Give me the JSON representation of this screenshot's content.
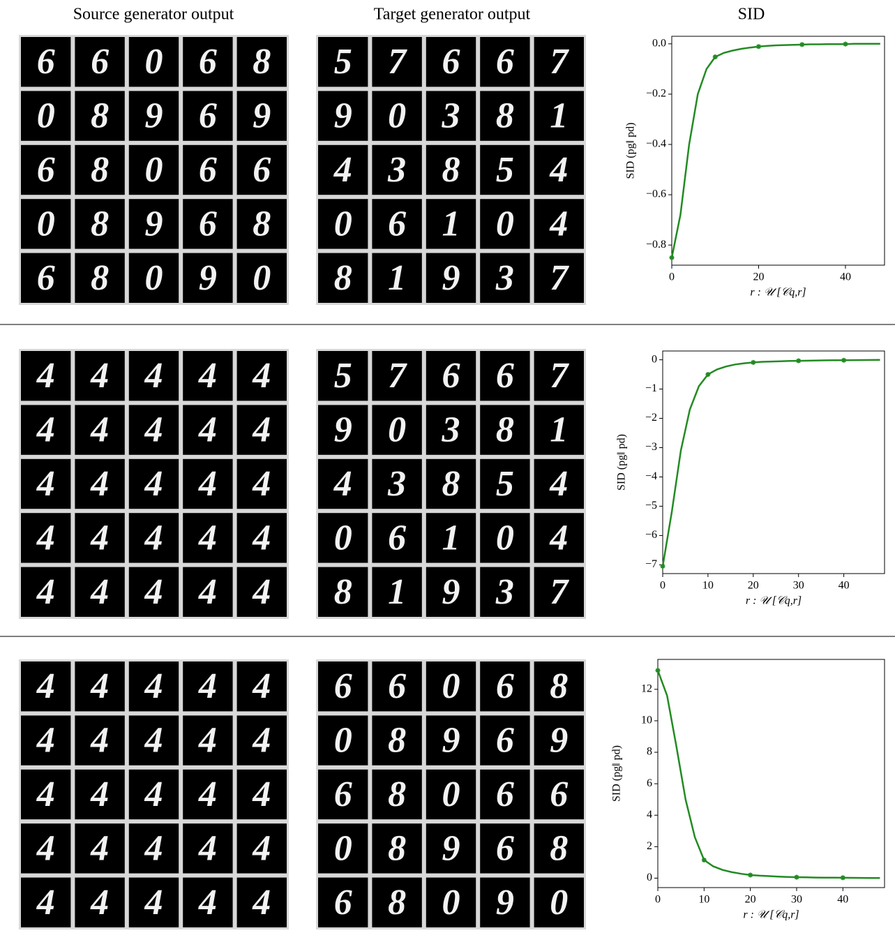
{
  "headers": [
    "Source generator output",
    "Target generator output",
    "SID"
  ],
  "panels": [
    {
      "source_grid": [
        [
          "6",
          "6",
          "0",
          "6",
          "8"
        ],
        [
          "0",
          "8",
          "9",
          "6",
          "9"
        ],
        [
          "6",
          "8",
          "0",
          "6",
          "6"
        ],
        [
          "0",
          "8",
          "9",
          "6",
          "8"
        ],
        [
          "6",
          "8",
          "0",
          "9",
          "0"
        ]
      ],
      "target_grid": [
        [
          "5",
          "7",
          "6",
          "6",
          "7"
        ],
        [
          "9",
          "0",
          "3",
          "8",
          "1"
        ],
        [
          "4",
          "3",
          "8",
          "5",
          "4"
        ],
        [
          "0",
          "6",
          "1",
          "0",
          "4"
        ],
        [
          "8",
          "1",
          "9",
          "3",
          "7"
        ]
      ]
    },
    {
      "source_grid": [
        [
          "4",
          "4",
          "4",
          "4",
          "4"
        ],
        [
          "4",
          "4",
          "4",
          "4",
          "4"
        ],
        [
          "4",
          "4",
          "4",
          "4",
          "4"
        ],
        [
          "4",
          "4",
          "4",
          "4",
          "4"
        ],
        [
          "4",
          "4",
          "4",
          "4",
          "4"
        ]
      ],
      "target_grid": [
        [
          "5",
          "7",
          "6",
          "6",
          "7"
        ],
        [
          "9",
          "0",
          "3",
          "8",
          "1"
        ],
        [
          "4",
          "3",
          "8",
          "5",
          "4"
        ],
        [
          "0",
          "6",
          "1",
          "0",
          "4"
        ],
        [
          "8",
          "1",
          "9",
          "3",
          "7"
        ]
      ]
    },
    {
      "source_grid": [
        [
          "4",
          "4",
          "4",
          "4",
          "4"
        ],
        [
          "4",
          "4",
          "4",
          "4",
          "4"
        ],
        [
          "4",
          "4",
          "4",
          "4",
          "4"
        ],
        [
          "4",
          "4",
          "4",
          "4",
          "4"
        ],
        [
          "4",
          "4",
          "4",
          "4",
          "4"
        ]
      ],
      "target_grid": [
        [
          "6",
          "6",
          "0",
          "6",
          "8"
        ],
        [
          "0",
          "8",
          "9",
          "6",
          "9"
        ],
        [
          "6",
          "8",
          "0",
          "6",
          "6"
        ],
        [
          "0",
          "8",
          "9",
          "6",
          "8"
        ],
        [
          "6",
          "8",
          "0",
          "9",
          "0"
        ]
      ]
    }
  ],
  "chart_data": [
    {
      "type": "line",
      "xlabel": "r : 𝒰 [𝒞q,r]",
      "ylabel": "SID (pg‖ pd)",
      "color": "#228b22",
      "markevery": 5,
      "x": [
        0,
        2,
        4,
        6,
        8,
        10,
        12,
        14,
        16,
        18,
        20,
        22,
        24,
        26,
        28,
        30,
        32,
        34,
        36,
        38,
        40,
        42,
        44,
        46,
        48
      ],
      "values": [
        -0.85,
        -0.68,
        -0.4,
        -0.2,
        -0.1,
        -0.052,
        -0.036,
        -0.027,
        -0.02,
        -0.015,
        -0.011,
        -0.008,
        -0.006,
        -0.005,
        -0.004,
        -0.003,
        -0.002,
        -0.002,
        -0.001,
        -0.001,
        -0.001,
        0,
        0,
        0,
        0
      ],
      "xlim": [
        0,
        49
      ],
      "xticks": [
        0,
        20,
        40
      ],
      "ylim": [
        -0.88,
        0.03
      ],
      "yticks": [
        {
          "value": -0.8,
          "label": "−0.8"
        },
        {
          "value": -0.6,
          "label": "−0.6"
        },
        {
          "value": -0.4,
          "label": "−0.4"
        },
        {
          "value": -0.2,
          "label": "−0.2"
        },
        {
          "value": 0,
          "label": "0.0"
        }
      ]
    },
    {
      "type": "line",
      "xlabel": "r : 𝒰 [𝒞q,r]",
      "ylabel": "SID (pg‖ pd)",
      "color": "#228b22",
      "markevery": 5,
      "x": [
        0,
        2,
        4,
        6,
        8,
        10,
        12,
        14,
        16,
        18,
        20,
        22,
        24,
        26,
        28,
        30,
        32,
        34,
        36,
        38,
        40,
        42,
        44,
        46,
        48
      ],
      "values": [
        -7.05,
        -5.2,
        -3.1,
        -1.7,
        -0.9,
        -0.5,
        -0.33,
        -0.23,
        -0.16,
        -0.12,
        -0.09,
        -0.07,
        -0.06,
        -0.05,
        -0.04,
        -0.035,
        -0.03,
        -0.025,
        -0.02,
        -0.018,
        -0.015,
        -0.012,
        -0.01,
        -0.008,
        -0.006
      ],
      "xlim": [
        0,
        49
      ],
      "xticks": [
        0,
        10,
        20,
        30,
        40
      ],
      "ylim": [
        -7.3,
        0.3
      ],
      "yticks": [
        {
          "value": -7,
          "label": "−7"
        },
        {
          "value": -6,
          "label": "−6"
        },
        {
          "value": -5,
          "label": "−5"
        },
        {
          "value": -4,
          "label": "−4"
        },
        {
          "value": -3,
          "label": "−3"
        },
        {
          "value": -2,
          "label": "−2"
        },
        {
          "value": -1,
          "label": "−1"
        },
        0
      ]
    },
    {
      "type": "line",
      "xlabel": "r : 𝒰 [𝒞q,r]",
      "ylabel": "SID (pg‖ pd)",
      "color": "#228b22",
      "markevery": 5,
      "x": [
        0,
        2,
        4,
        6,
        8,
        10,
        12,
        14,
        16,
        18,
        20,
        22,
        24,
        26,
        28,
        30,
        32,
        34,
        36,
        38,
        40,
        42,
        44,
        46,
        48
      ],
      "values": [
        13.2,
        11.6,
        8.4,
        5.0,
        2.6,
        1.15,
        0.75,
        0.52,
        0.38,
        0.28,
        0.2,
        0.16,
        0.13,
        0.1,
        0.08,
        0.06,
        0.05,
        0.04,
        0.035,
        0.03,
        0.025,
        0.02,
        0.015,
        0.012,
        0.01
      ],
      "xlim": [
        0,
        49
      ],
      "xticks": [
        0,
        10,
        20,
        30,
        40
      ],
      "ylim": [
        -0.6,
        13.9
      ],
      "yticks": [
        0,
        2,
        4,
        6,
        8,
        10,
        12
      ]
    }
  ]
}
